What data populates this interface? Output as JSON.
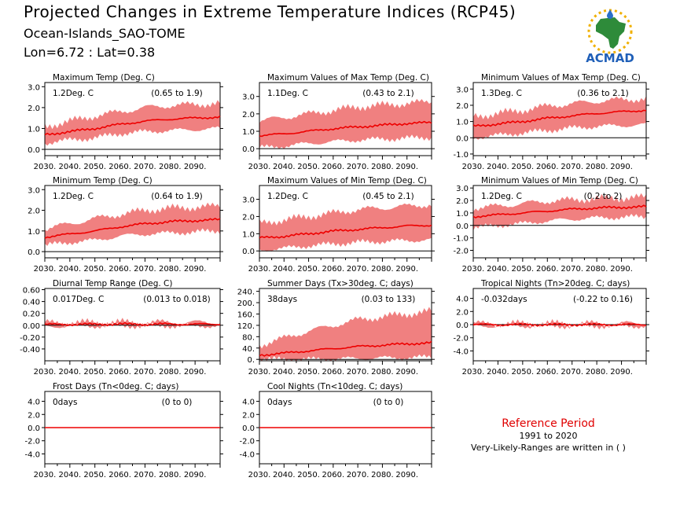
{
  "header": {
    "title": "Projected Changes in Extreme Temperature Indices (RCP45)",
    "location": "Ocean-Islands_SAO-TOME",
    "coords": "Lon=6.72 : Lat=0.38"
  },
  "logo": {
    "text": "ACMAD",
    "icon": "africa-map-logo-icon"
  },
  "reference": {
    "heading": "Reference Period",
    "period": "1991 to 2020",
    "note": "Very-Likely-Ranges are written in ( )"
  },
  "colors": {
    "band": "#f08080",
    "line": "#ee0000",
    "axis": "#000000"
  },
  "x_ticks": [
    "2030.",
    "2040.",
    "2050.",
    "2060.",
    "2070.",
    "2080.",
    "2090."
  ],
  "chart_data": [
    {
      "type": "area",
      "title": "Maximum Temp (Deg. C)",
      "value_label": "1.2Deg. C",
      "range_label": "(0.65 to 1.9)",
      "xlim": [
        2030,
        2100
      ],
      "ylim": [
        -0.3,
        3.2
      ],
      "y_ticks": [
        0.0,
        1.0,
        2.0,
        3.0
      ],
      "y_tick_labels": [
        "0.0",
        "1.0",
        "2.0",
        "3.0"
      ],
      "x": [
        2030,
        2040,
        2050,
        2060,
        2070,
        2080,
        2090,
        2100
      ],
      "series": [
        {
          "role": "median",
          "values": [
            0.7,
            0.85,
            1.0,
            1.2,
            1.35,
            1.45,
            1.5,
            1.55
          ]
        },
        {
          "role": "lower",
          "values": [
            0.3,
            0.45,
            0.55,
            0.75,
            0.85,
            0.9,
            0.95,
            1.0
          ]
        },
        {
          "role": "upper",
          "values": [
            1.1,
            1.35,
            1.6,
            1.8,
            2.0,
            2.1,
            2.15,
            2.2
          ]
        }
      ]
    },
    {
      "type": "area",
      "title": "Maximum Values of Max Temp (Deg. C)",
      "value_label": "1.1Deg. C",
      "range_label": "(0.43 to 2.1)",
      "xlim": [
        2030,
        2100
      ],
      "ylim": [
        -0.4,
        3.8
      ],
      "y_ticks": [
        0.0,
        1.0,
        2.0,
        3.0
      ],
      "y_tick_labels": [
        "0.0",
        "1.0",
        "2.0",
        "3.0"
      ],
      "x": [
        2030,
        2040,
        2050,
        2060,
        2070,
        2080,
        2090,
        2100
      ],
      "series": [
        {
          "role": "median",
          "values": [
            0.75,
            0.85,
            1.0,
            1.15,
            1.25,
            1.35,
            1.45,
            1.5
          ]
        },
        {
          "role": "lower",
          "values": [
            0.05,
            0.15,
            0.3,
            0.4,
            0.5,
            0.55,
            0.6,
            0.65
          ]
        },
        {
          "role": "upper",
          "values": [
            1.6,
            1.8,
            2.0,
            2.2,
            2.4,
            2.5,
            2.6,
            2.7
          ]
        }
      ]
    },
    {
      "type": "area",
      "title": "Minimum Values of Max Temp (Deg. C)",
      "value_label": "1.3Deg. C",
      "range_label": "(0.36 to 2.1)",
      "xlim": [
        2030,
        2100
      ],
      "ylim": [
        -1.1,
        3.4
      ],
      "y_ticks": [
        -1.0,
        0.0,
        1.0,
        2.0,
        3.0
      ],
      "y_tick_labels": [
        "-1.0",
        "0.0",
        "1.0",
        "2.0",
        "3.0"
      ],
      "x": [
        2030,
        2040,
        2050,
        2060,
        2070,
        2080,
        2090,
        2100
      ],
      "series": [
        {
          "role": "median",
          "values": [
            0.7,
            0.85,
            1.0,
            1.2,
            1.35,
            1.5,
            1.6,
            1.7
          ]
        },
        {
          "role": "lower",
          "values": [
            0.0,
            0.15,
            0.3,
            0.45,
            0.6,
            0.7,
            0.75,
            0.8
          ]
        },
        {
          "role": "upper",
          "values": [
            1.3,
            1.5,
            1.7,
            1.95,
            2.1,
            2.25,
            2.35,
            2.4
          ]
        }
      ]
    },
    {
      "type": "area",
      "title": "Minimum Temp (Deg. C)",
      "value_label": "1.2Deg. C",
      "range_label": "(0.64 to 1.9)",
      "xlim": [
        2030,
        2100
      ],
      "ylim": [
        -0.3,
        3.2
      ],
      "y_ticks": [
        0.0,
        1.0,
        2.0,
        3.0
      ],
      "y_tick_labels": [
        "0.0",
        "1.0",
        "2.0",
        "3.0"
      ],
      "x": [
        2030,
        2040,
        2050,
        2060,
        2070,
        2080,
        2090,
        2100
      ],
      "series": [
        {
          "role": "median",
          "values": [
            0.7,
            0.85,
            1.0,
            1.2,
            1.35,
            1.45,
            1.5,
            1.55
          ]
        },
        {
          "role": "lower",
          "values": [
            0.3,
            0.45,
            0.55,
            0.75,
            0.85,
            0.9,
            0.95,
            1.0
          ]
        },
        {
          "role": "upper",
          "values": [
            1.1,
            1.35,
            1.6,
            1.8,
            2.0,
            2.1,
            2.15,
            2.2
          ]
        }
      ]
    },
    {
      "type": "area",
      "title": "Maximum Values of Min Temp (Deg. C)",
      "value_label": "1.2Deg. C",
      "range_label": "(0.45 to 2.1)",
      "xlim": [
        2030,
        2100
      ],
      "ylim": [
        -0.4,
        3.8
      ],
      "y_ticks": [
        0.0,
        1.0,
        2.0,
        3.0
      ],
      "y_tick_labels": [
        "0.0",
        "1.0",
        "2.0",
        "3.0"
      ],
      "x": [
        2030,
        2040,
        2050,
        2060,
        2070,
        2080,
        2090,
        2100
      ],
      "series": [
        {
          "role": "median",
          "values": [
            0.75,
            0.85,
            1.0,
            1.15,
            1.25,
            1.35,
            1.45,
            1.5
          ]
        },
        {
          "role": "lower",
          "values": [
            0.05,
            0.15,
            0.3,
            0.4,
            0.5,
            0.55,
            0.6,
            0.65
          ]
        },
        {
          "role": "upper",
          "values": [
            1.6,
            1.8,
            2.0,
            2.2,
            2.4,
            2.5,
            2.6,
            2.7
          ]
        }
      ]
    },
    {
      "type": "area",
      "title": "Minimum Values of Min Temp (Deg. C)",
      "value_label": "1.2Deg. C",
      "range_label": "(0.2 to 2)",
      "xlim": [
        2030,
        2100
      ],
      "ylim": [
        -2.6,
        3.2
      ],
      "y_ticks": [
        -2.0,
        -1.0,
        0.0,
        1.0,
        2.0,
        3.0
      ],
      "y_tick_labels": [
        "-2.0",
        "-1.0",
        "0.0",
        "1.0",
        "2.0",
        "3.0"
      ],
      "x": [
        2030,
        2040,
        2050,
        2060,
        2070,
        2080,
        2090,
        2100
      ],
      "series": [
        {
          "role": "median",
          "values": [
            0.7,
            0.85,
            1.0,
            1.15,
            1.3,
            1.4,
            1.45,
            1.5
          ]
        },
        {
          "role": "lower",
          "values": [
            -0.2,
            0.0,
            0.15,
            0.35,
            0.5,
            0.6,
            0.65,
            0.7
          ]
        },
        {
          "role": "upper",
          "values": [
            1.4,
            1.55,
            1.75,
            1.95,
            2.05,
            2.15,
            2.2,
            2.25
          ]
        }
      ]
    },
    {
      "type": "area",
      "title": "Diurnal Temp Range (Deg. C)",
      "value_label": "0.017Deg. C",
      "range_label": "(0.013 to 0.018)",
      "xlim": [
        2030,
        2100
      ],
      "ylim": [
        -0.6,
        0.62
      ],
      "y_ticks": [
        -0.4,
        -0.2,
        0.0,
        0.2,
        0.4,
        0.6
      ],
      "y_tick_labels": [
        "-0.40",
        "-0.20",
        "0.00",
        "0.20",
        "0.40",
        "0.60"
      ],
      "x": [
        2030,
        2040,
        2050,
        2060,
        2070,
        2080,
        2090,
        2100
      ],
      "series": [
        {
          "role": "median",
          "values": [
            0.01,
            0.015,
            0.015,
            0.02,
            0.015,
            0.02,
            0.015,
            0.02
          ]
        },
        {
          "role": "lower",
          "values": [
            -0.02,
            -0.015,
            -0.015,
            -0.01,
            -0.015,
            -0.01,
            -0.015,
            -0.01
          ]
        },
        {
          "role": "upper",
          "values": [
            0.04,
            0.045,
            0.045,
            0.05,
            0.045,
            0.05,
            0.045,
            0.05
          ]
        }
      ]
    },
    {
      "type": "area",
      "title": "Summer Days (Tx>30deg. C; days)",
      "value_label": "38days",
      "range_label": "(0.03 to 133)",
      "xlim": [
        2030,
        2100
      ],
      "ylim": [
        -5,
        250
      ],
      "y_ticks": [
        0,
        40,
        80,
        120,
        160,
        200,
        240
      ],
      "y_tick_labels": [
        "0.",
        "40.",
        "80.",
        "120.",
        "160.",
        "200.",
        "240."
      ],
      "x": [
        2030,
        2040,
        2050,
        2060,
        2070,
        2080,
        2090,
        2100
      ],
      "series": [
        {
          "role": "median",
          "values": [
            15,
            22,
            30,
            38,
            45,
            50,
            55,
            58
          ]
        },
        {
          "role": "lower",
          "values": [
            0,
            0,
            0,
            2,
            3,
            5,
            6,
            8
          ]
        },
        {
          "role": "upper",
          "values": [
            50,
            75,
            100,
            120,
            140,
            150,
            160,
            170
          ]
        }
      ]
    },
    {
      "type": "area",
      "title": "Tropical Nights (Tn>20deg. C; days)",
      "value_label": "-0.032days",
      "range_label": "(-0.22 to 0.16)",
      "xlim": [
        2030,
        2100
      ],
      "ylim": [
        -5.5,
        5.5
      ],
      "y_ticks": [
        -4.0,
        -2.0,
        0.0,
        2.0,
        4.0
      ],
      "y_tick_labels": [
        "-4.0",
        "-2.0",
        "0.0",
        "2.0",
        "4.0"
      ],
      "x": [
        2030,
        2040,
        2050,
        2060,
        2070,
        2080,
        2090,
        2100
      ],
      "series": [
        {
          "role": "median",
          "values": [
            0,
            0,
            0,
            0,
            0,
            0,
            0,
            0
          ]
        },
        {
          "role": "lower",
          "values": [
            -0.22,
            -0.22,
            -0.22,
            -0.22,
            -0.22,
            -0.22,
            -0.22,
            -0.22
          ]
        },
        {
          "role": "upper",
          "values": [
            0.16,
            0.16,
            0.16,
            0.16,
            0.16,
            0.16,
            0.16,
            0.16
          ]
        }
      ]
    },
    {
      "type": "line",
      "title": "Frost Days (Tn<0deg. C; days)",
      "value_label": "0days",
      "range_label": "(0 to 0)",
      "xlim": [
        2030,
        2100
      ],
      "ylim": [
        -5.5,
        5.5
      ],
      "y_ticks": [
        -4.0,
        -2.0,
        0.0,
        2.0,
        4.0
      ],
      "y_tick_labels": [
        "-4.0",
        "-2.0",
        "0.0",
        "2.0",
        "4.0"
      ],
      "x": [
        2030,
        2100
      ],
      "series": [
        {
          "role": "median",
          "values": [
            0,
            0
          ]
        }
      ]
    },
    {
      "type": "line",
      "title": "Cool Nights (Tn<10deg. C; days)",
      "value_label": "0days",
      "range_label": "(0 to 0)",
      "xlim": [
        2030,
        2100
      ],
      "ylim": [
        -5.5,
        5.5
      ],
      "y_ticks": [
        -4.0,
        -2.0,
        0.0,
        2.0,
        4.0
      ],
      "y_tick_labels": [
        "-4.0",
        "-2.0",
        "0.0",
        "2.0",
        "4.0"
      ],
      "x": [
        2030,
        2100
      ],
      "series": [
        {
          "role": "median",
          "values": [
            0,
            0
          ]
        }
      ]
    }
  ]
}
